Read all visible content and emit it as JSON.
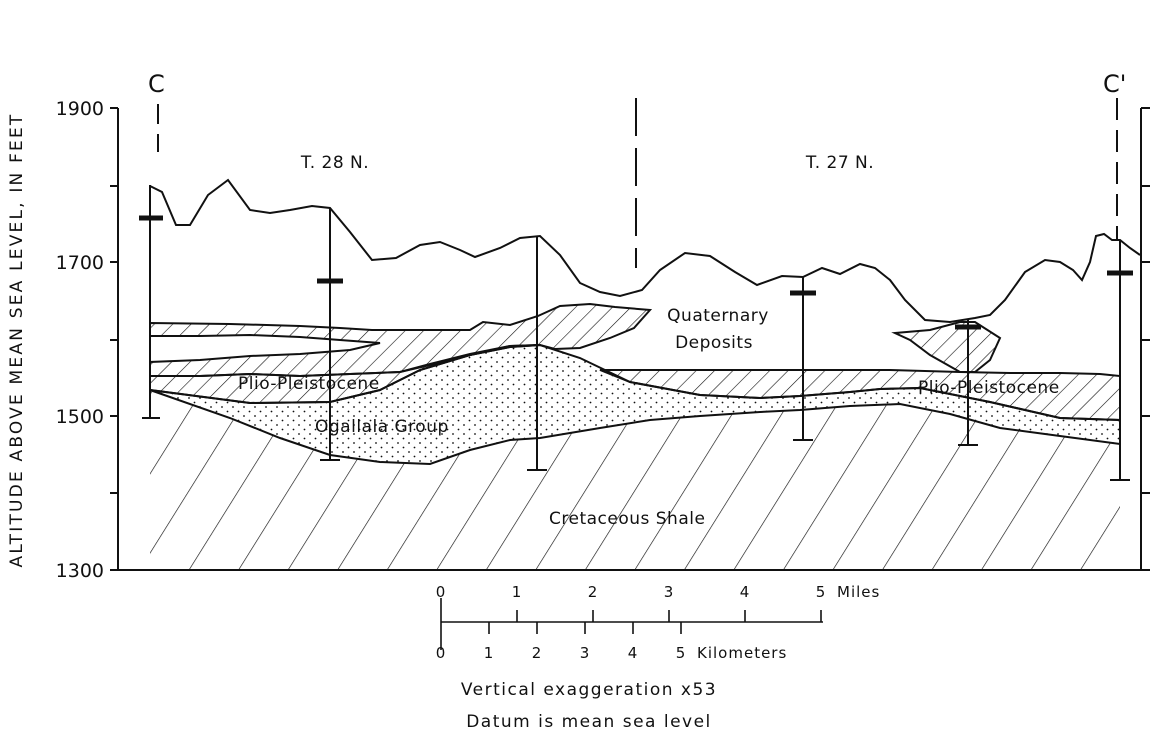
{
  "figure": {
    "y_axis_label": "ALTITUDE ABOVE MEAN SEA LEVEL, IN FEET",
    "y_ticks": [
      "1900",
      "1700",
      "1500",
      "1300"
    ],
    "section_start": "C",
    "section_end": "C'",
    "townships": [
      "T. 28 N.",
      "T. 27 N."
    ],
    "units": [
      "Quaternary",
      "Deposits",
      "Plio-Pleistocene",
      "Plio-Pleistocene",
      "Ogallala Group",
      "Cretaceous Shale"
    ],
    "scale_miles": {
      "ticks": [
        "0",
        "1",
        "2",
        "3",
        "4",
        "5"
      ],
      "unit": "Miles"
    },
    "scale_km": {
      "ticks": [
        "0",
        "1",
        "2",
        "3",
        "4",
        "5"
      ],
      "unit": "Kilometers"
    },
    "caption_1": "Vertical exaggeration x53",
    "caption_2": "Datum is mean sea level"
  }
}
